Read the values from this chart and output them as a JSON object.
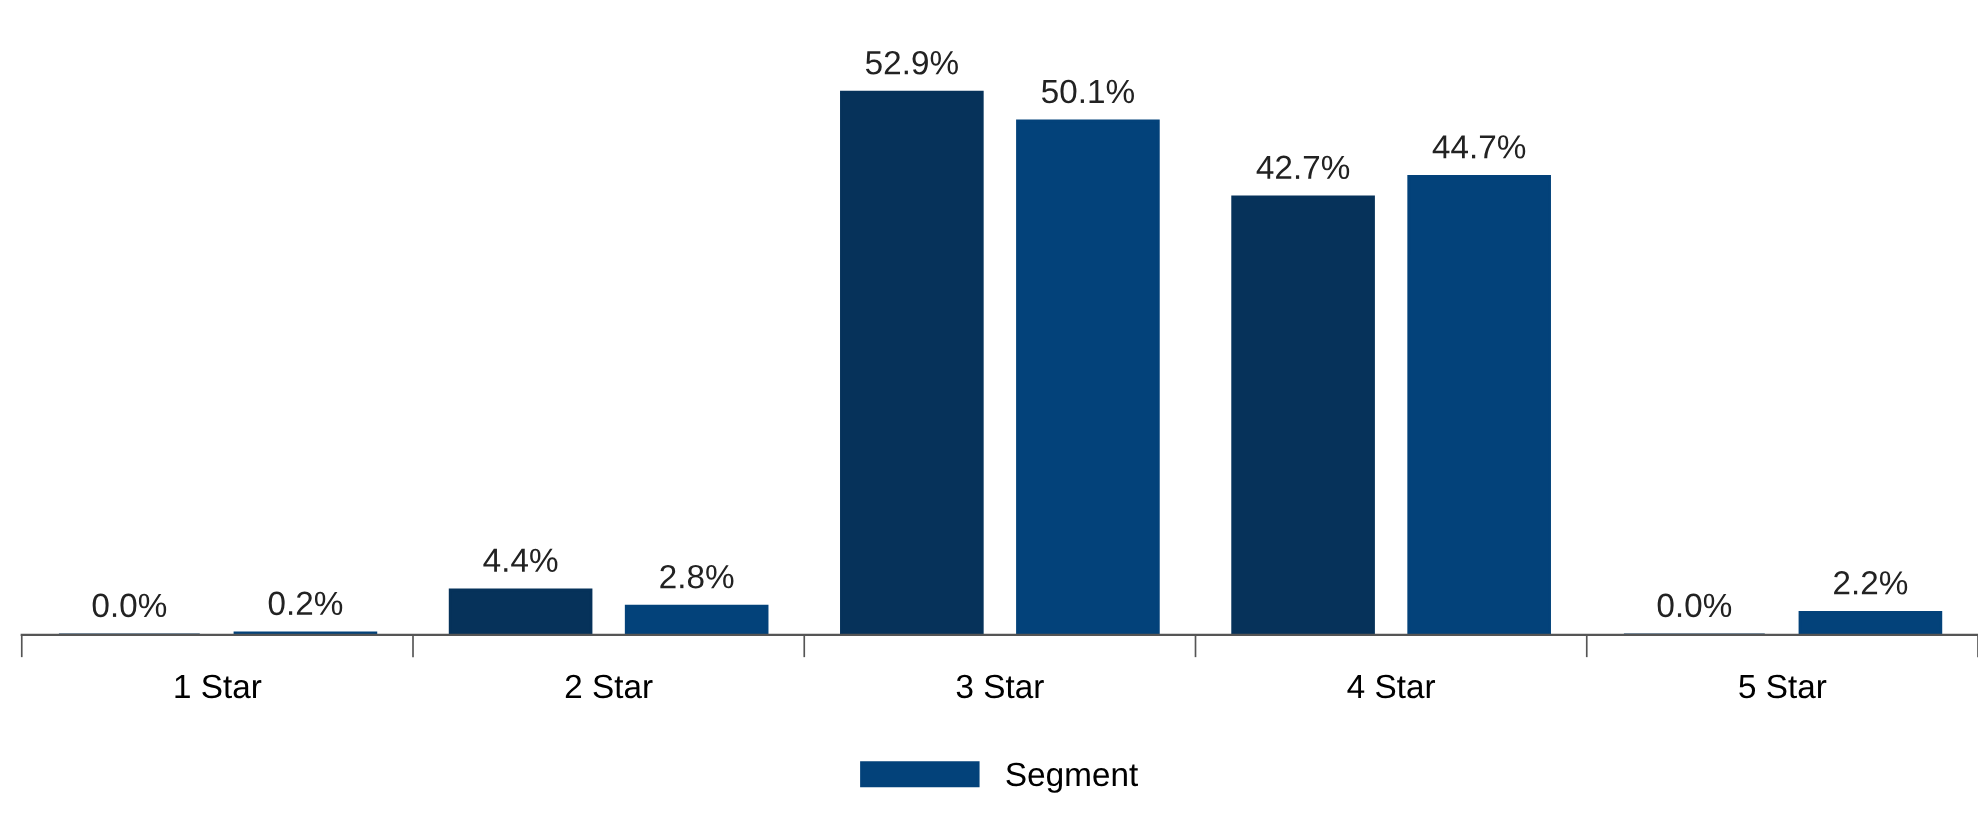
{
  "chart_data": {
    "type": "bar",
    "categories": [
      "1 Star",
      "2 Star",
      "3 Star",
      "4 Star",
      "5 Star"
    ],
    "series": [
      {
        "color": "#06325a",
        "values": [
          0.0,
          4.4,
          52.9,
          42.7,
          0.0
        ],
        "value_labels": [
          "0.0%",
          "4.4%",
          "52.9%",
          "42.7%",
          "0.0%"
        ]
      },
      {
        "name": "Segment",
        "color": "#03427a",
        "values": [
          0.2,
          2.8,
          50.1,
          44.7,
          2.2
        ],
        "value_labels": [
          "0.2%",
          "2.8%",
          "50.1%",
          "44.7%",
          "2.2%"
        ]
      }
    ],
    "legend": "bottom",
    "grid": false
  }
}
